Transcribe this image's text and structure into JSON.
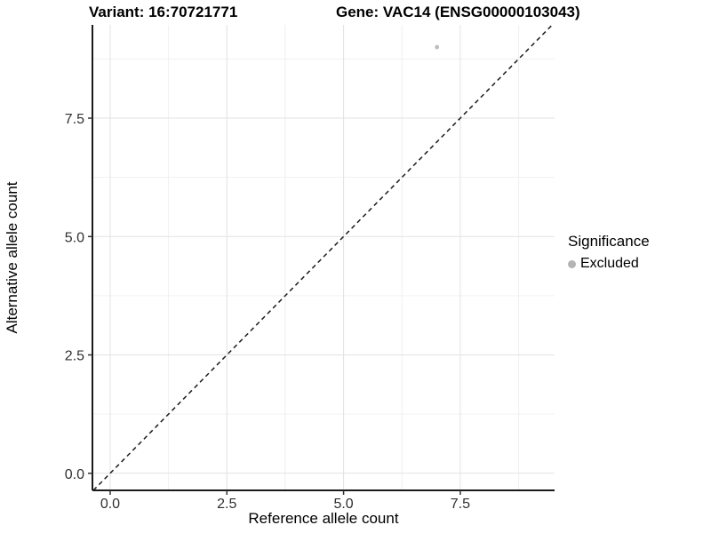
{
  "figure": {
    "variant_title": "Variant: 16:70721771",
    "gene_title": "Gene: VAC14 (ENSG00000103043)"
  },
  "legend": {
    "title": "Significance",
    "items": [
      {
        "label": "Excluded",
        "marker": "circle-icon",
        "color": "#b3b3b3"
      }
    ]
  },
  "colors": {
    "background": "#ffffff",
    "grid_major": "#e2e2e2",
    "grid_minor": "#f0f0f0",
    "axis_line": "#1a1a1a",
    "tick_mark": "#333333",
    "tick_label": "#303030",
    "reference_line": "#1a1a1a",
    "point": "#bdbdbd"
  },
  "chart_data": {
    "type": "scatter",
    "title": "Variant: 16:70721771 / Gene: VAC14 (ENSG00000103043)",
    "xlabel": "Reference allele count",
    "ylabel": "Alternative allele count",
    "xlim": [
      -0.38,
      9.52
    ],
    "ylim": [
      -0.36,
      9.47
    ],
    "x_major_ticks": [
      0,
      2.5,
      5,
      7.5
    ],
    "x_tick_labels": [
      "0.0",
      "2.5",
      "5.0",
      "7.5"
    ],
    "x_minor_ticks": [
      1.25,
      3.75,
      6.25,
      8.75
    ],
    "y_major_ticks": [
      0,
      2.5,
      5,
      7.5
    ],
    "y_tick_labels": [
      "0.0",
      "2.5",
      "5.0",
      "7.5"
    ],
    "y_minor_ticks": [
      1.25,
      3.75,
      6.25,
      8.75
    ],
    "grid": true,
    "legend_position": "right",
    "series": [
      {
        "name": "Excluded",
        "color": "#bdbdbd",
        "points": [
          {
            "x": 7,
            "y": 9
          }
        ]
      }
    ],
    "reference_line": {
      "kind": "identity",
      "style": "dashed",
      "from": [
        -0.36,
        -0.36
      ],
      "to": [
        9.47,
        9.47
      ]
    }
  }
}
